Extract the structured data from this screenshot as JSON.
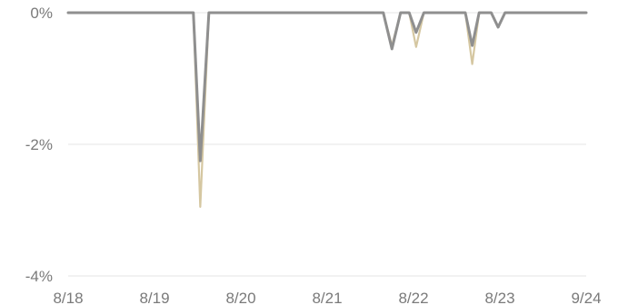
{
  "chart_data": {
    "type": "line",
    "title": "",
    "xlabel": "",
    "ylabel": "",
    "x_tick_labels": [
      "8/18",
      "8/19",
      "8/20",
      "8/21",
      "8/22",
      "8/23",
      "9/24"
    ],
    "xlim": [
      0,
      6
    ],
    "ylim": [
      -4,
      0
    ],
    "y_ticks": [
      {
        "value": 0,
        "label": "0%"
      },
      {
        "value": -2,
        "label": "-2%"
      },
      {
        "value": -4,
        "label": "-4%"
      }
    ],
    "grid": {
      "x": false,
      "y": true
    },
    "legend": "none",
    "series": [
      {
        "color": "#d5c7a1",
        "points": [
          [
            0,
            0
          ],
          [
            1.45,
            0
          ],
          [
            1.53,
            -2.95
          ],
          [
            1.63,
            0
          ],
          [
            3.65,
            0
          ],
          [
            3.75,
            -0.5
          ],
          [
            3.85,
            0
          ],
          [
            3.95,
            0
          ],
          [
            4.03,
            -0.52
          ],
          [
            4.12,
            0
          ],
          [
            4.6,
            0
          ],
          [
            4.68,
            -0.78
          ],
          [
            4.76,
            0
          ],
          [
            4.9,
            0
          ],
          [
            4.98,
            -0.22
          ],
          [
            5.06,
            0
          ],
          [
            6,
            0
          ]
        ]
      },
      {
        "color": "#8f8f8f",
        "points": [
          [
            0,
            0
          ],
          [
            1.45,
            0
          ],
          [
            1.53,
            -2.25
          ],
          [
            1.63,
            0
          ],
          [
            3.65,
            0
          ],
          [
            3.75,
            -0.55
          ],
          [
            3.85,
            0
          ],
          [
            3.95,
            0
          ],
          [
            4.03,
            -0.3
          ],
          [
            4.12,
            0
          ],
          [
            4.6,
            0
          ],
          [
            4.68,
            -0.5
          ],
          [
            4.76,
            0
          ],
          [
            4.9,
            0
          ],
          [
            4.98,
            -0.22
          ],
          [
            5.06,
            0
          ],
          [
            6,
            0
          ]
        ]
      }
    ]
  }
}
